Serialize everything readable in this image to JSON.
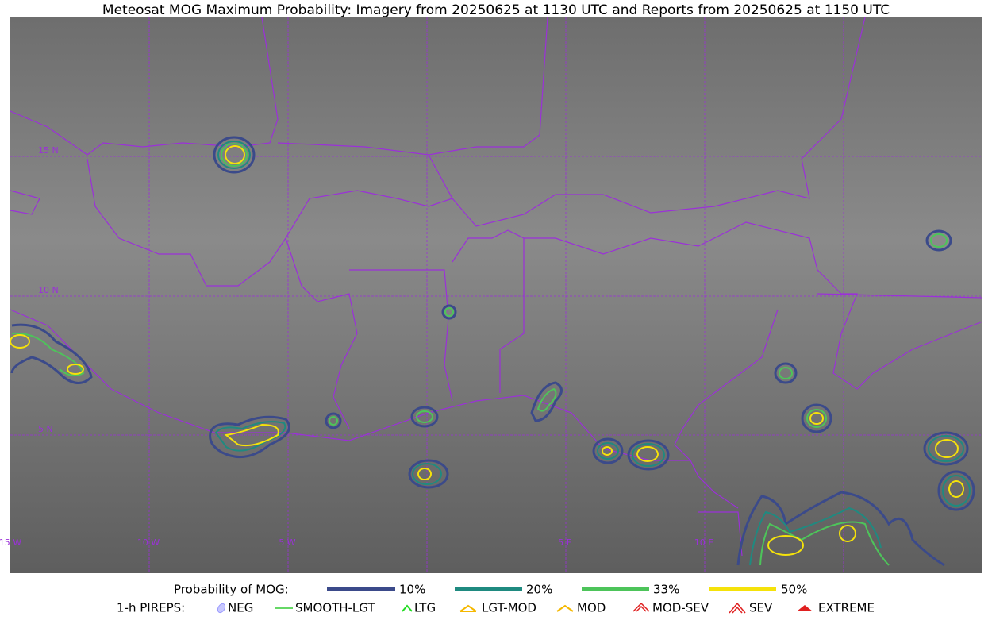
{
  "title": "Meteosat MOG Maximum Probability: Imagery from 20250625 at 1130 UTC and Reports from 20250625 at 1150 UTC",
  "map": {
    "lat_labels": [
      "15 N",
      "10 N",
      "5 N"
    ],
    "lon_labels": [
      "15 W",
      "10 W",
      "5 W",
      "5 E",
      "10 E"
    ]
  },
  "legend": {
    "probability": {
      "label": "Probability of MOG:",
      "items": [
        "10%",
        "20%",
        "33%",
        "50%"
      ]
    },
    "pireps": {
      "label": "1-h PIREPS:",
      "items": [
        "NEG",
        "SMOOTH-LGT",
        "LTG",
        "LGT-MOD",
        "MOD",
        "MOD-SEV",
        "SEV",
        "EXTREME"
      ]
    }
  }
}
